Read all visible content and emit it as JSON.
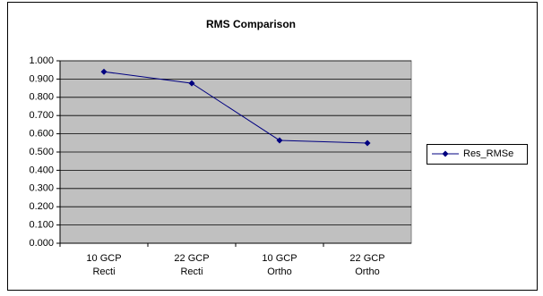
{
  "chart_data": {
    "type": "line",
    "title": "RMS Comparison",
    "categories": [
      "10 GCP Recti",
      "22 GCP Recti",
      "10 GCP Ortho",
      "22 GCP Ortho"
    ],
    "series": [
      {
        "name": "Res_RMSe",
        "color": "#000080",
        "values": [
          0.94,
          0.877,
          0.564,
          0.549
        ]
      }
    ],
    "ylim": [
      0,
      1
    ],
    "yticks": [
      {
        "value": 0,
        "label": "0.000"
      },
      {
        "value": 0.1,
        "label": "0.100"
      },
      {
        "value": 0.2,
        "label": "0.200"
      },
      {
        "value": 0.3,
        "label": "0.300"
      },
      {
        "value": 0.4,
        "label": "0.400"
      },
      {
        "value": 0.5,
        "label": "0.500"
      },
      {
        "value": 0.6,
        "label": "0.600"
      },
      {
        "value": 0.7,
        "label": "0.700"
      },
      {
        "value": 0.8,
        "label": "0.800"
      },
      {
        "value": 0.9,
        "label": "0.900"
      },
      {
        "value": 1,
        "label": "1.000"
      }
    ],
    "grid": true,
    "legend": "right",
    "plot_background": "#c0c0c0"
  }
}
